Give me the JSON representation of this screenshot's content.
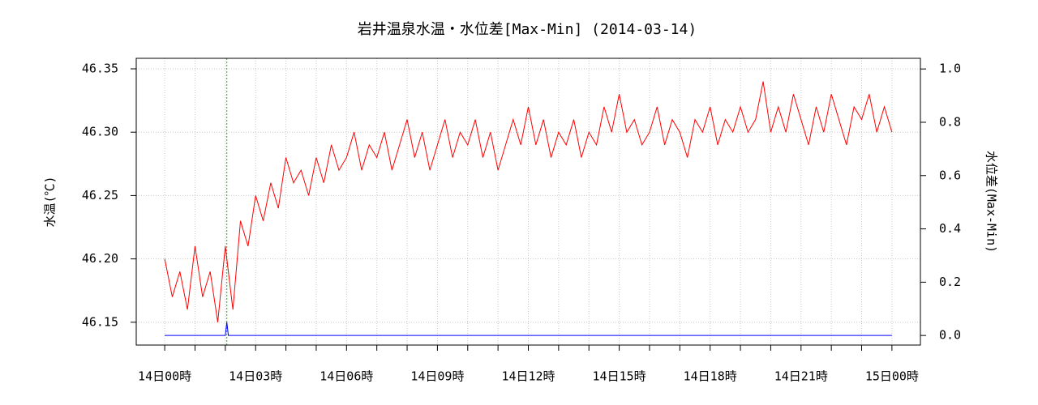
{
  "chart_data": {
    "type": "line",
    "title": "岩井温泉水温・水位差[Max-Min] (2014-03-14)",
    "ylabel": "水温(℃)",
    "y2label": "水位差(Max-Min)",
    "xlim": [
      -0.94,
      24.94
    ],
    "xticks": [
      {
        "value": 0,
        "label": "14日00時"
      },
      {
        "value": 3,
        "label": "14日03時"
      },
      {
        "value": 6,
        "label": "14日06時"
      },
      {
        "value": 9,
        "label": "14日09時"
      },
      {
        "value": 12,
        "label": "14日12時"
      },
      {
        "value": 15,
        "label": "14日15時"
      },
      {
        "value": 18,
        "label": "14日18時"
      },
      {
        "value": 21,
        "label": "14日21時"
      },
      {
        "value": 24,
        "label": "15日00時"
      }
    ],
    "xminor_ticks": [
      0,
      1,
      2,
      3,
      4,
      5,
      6,
      7,
      8,
      9,
      10,
      11,
      12,
      13,
      14,
      15,
      16,
      17,
      18,
      19,
      20,
      21,
      22,
      23,
      24
    ],
    "ylim": [
      46.132,
      46.3583
    ],
    "yticks": [
      46.15,
      {
        "value": 46.2,
        "label": "46.20"
      },
      46.25,
      {
        "value": 46.3,
        "label": "46.30"
      },
      46.35
    ],
    "y2lim": [
      -0.036,
      1.04
    ],
    "y2ticks": [
      {
        "value": 0,
        "label": "0.0"
      },
      0.2,
      0.4,
      0.6,
      0.8,
      {
        "value": 1,
        "label": "1.0"
      }
    ],
    "grid": true,
    "vline_x": 2.05,
    "vline_color": "#00c000",
    "series": [
      {
        "name": "水温",
        "color": "#ff0000",
        "x": [
          0,
          0.25,
          0.5,
          0.75,
          1,
          1.25,
          1.5,
          1.75,
          2,
          2.25,
          2.5,
          2.75,
          3,
          3.25,
          3.5,
          3.75,
          4,
          4.25,
          4.5,
          4.75,
          5,
          5.25,
          5.5,
          5.75,
          6,
          6.25,
          6.5,
          6.75,
          7,
          7.25,
          7.5,
          7.75,
          8,
          8.25,
          8.5,
          8.75,
          9,
          9.25,
          9.5,
          9.75,
          10,
          10.25,
          10.5,
          10.75,
          11,
          11.25,
          11.5,
          11.75,
          12,
          12.25,
          12.5,
          12.75,
          13,
          13.25,
          13.5,
          13.75,
          14,
          14.25,
          14.5,
          14.75,
          15,
          15.25,
          15.5,
          15.75,
          16,
          16.25,
          16.5,
          16.75,
          17,
          17.25,
          17.5,
          17.75,
          18,
          18.25,
          18.5,
          18.75,
          19,
          19.25,
          19.5,
          19.75,
          20,
          20.25,
          20.5,
          20.75,
          21,
          21.25,
          21.5,
          21.75,
          22,
          22.25,
          22.5,
          22.75,
          23,
          23.25,
          23.5,
          23.75,
          24
        ],
        "values": [
          46.2,
          46.17,
          46.19,
          46.16,
          46.21,
          46.17,
          46.19,
          46.15,
          46.21,
          46.16,
          46.23,
          46.21,
          46.25,
          46.23,
          46.26,
          46.24,
          46.28,
          46.26,
          46.27,
          46.25,
          46.28,
          46.26,
          46.29,
          46.27,
          46.28,
          46.3,
          46.27,
          46.29,
          46.28,
          46.3,
          46.27,
          46.29,
          46.31,
          46.28,
          46.3,
          46.27,
          46.29,
          46.31,
          46.28,
          46.3,
          46.29,
          46.31,
          46.28,
          46.3,
          46.27,
          46.29,
          46.31,
          46.29,
          46.32,
          46.29,
          46.31,
          46.28,
          46.3,
          46.29,
          46.31,
          46.28,
          46.3,
          46.29,
          46.32,
          46.3,
          46.33,
          46.3,
          46.31,
          46.29,
          46.3,
          46.32,
          46.29,
          46.31,
          46.3,
          46.28,
          46.31,
          46.3,
          46.32,
          46.29,
          46.31,
          46.3,
          46.32,
          46.3,
          46.31,
          46.34,
          46.3,
          46.32,
          46.3,
          46.33,
          46.31,
          46.29,
          46.32,
          46.3,
          46.33,
          46.31,
          46.29,
          46.32,
          46.31,
          46.33,
          46.3,
          46.32,
          46.3
        ]
      },
      {
        "name": "水位差",
        "color": "#0000ff",
        "axis": "y2",
        "x": [
          0,
          2.0,
          2.05,
          2.1,
          24
        ],
        "values": [
          0,
          0,
          0.05,
          0,
          0
        ]
      }
    ]
  }
}
